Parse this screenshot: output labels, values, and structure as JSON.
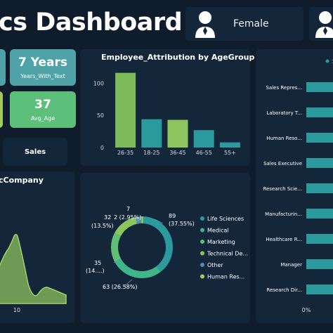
{
  "header": {
    "title": "cs Dashboard",
    "gender_female_label": "Female"
  },
  "kpis": {
    "years_value": "7 Years",
    "years_label": "Years_With_Text",
    "age_value": "37",
    "age_label": "Avg_Age",
    "dept_label": "Sales"
  },
  "colors": {
    "background": "#0e1c2c",
    "panel": "#13263a",
    "teal": "#2a9a9c",
    "green": "#7dbb5a",
    "card_teal": "#4fa3a8",
    "card_green": "#5cc07a"
  },
  "age_chart": {
    "title": "Employee_Attribution by AgeGroup",
    "y_ticks": [
      "0",
      "50",
      "100"
    ],
    "categories": [
      "26-35",
      "18-25",
      "36-45",
      "46-55",
      "55+"
    ]
  },
  "company_chart": {
    "title": "cCompany",
    "x_tick": "10"
  },
  "donut": {
    "legend": [
      "Life Sciences",
      "Medical",
      "Marketing",
      "Technical De...",
      "Other",
      "Human Res..."
    ],
    "labels": {
      "life_value": "89",
      "life_pct": "(37.55%)",
      "medical_value": "63 (26.58%)",
      "marketing_value": "35",
      "marketing_pct": "(14....)",
      "technical_value": "32",
      "technical_pct": "(13.5%)",
      "other_value": "7",
      "other_pct": "2 (2.95%)"
    }
  },
  "role_chart": {
    "roles": [
      "Sales Repres...",
      "Laboratory T...",
      "Human Reso...",
      "Sales Executive",
      "Research Scie...",
      "Manufacturin...",
      "Healthcare R...",
      "Manager",
      "Research Dir..."
    ],
    "x_tick": "0%"
  },
  "chart_data": [
    {
      "type": "bar",
      "title": "Employee_Attribution by AgeGroup",
      "categories": [
        "26-35",
        "18-25",
        "36-45",
        "46-55",
        "55+"
      ],
      "values": [
        116,
        44,
        43,
        27,
        8
      ],
      "ylim": [
        0,
        120
      ]
    },
    {
      "type": "pie",
      "categories": [
        "Life Sciences",
        "Medical",
        "Marketing",
        "Technical Degree",
        "Other",
        "Human Resources"
      ],
      "values": [
        89,
        63,
        35,
        32,
        7,
        2
      ],
      "percent": [
        37.55,
        26.58,
        14.77,
        13.5,
        2.95,
        0.84
      ]
    },
    {
      "type": "bar",
      "orientation": "horizontal",
      "categories": [
        "Sales Repres...",
        "Laboratory T...",
        "Human Reso...",
        "Sales Executive",
        "Research Scie...",
        "Manufacturin...",
        "Healthcare R...",
        "Manager",
        "Research Dir..."
      ]
    }
  ]
}
